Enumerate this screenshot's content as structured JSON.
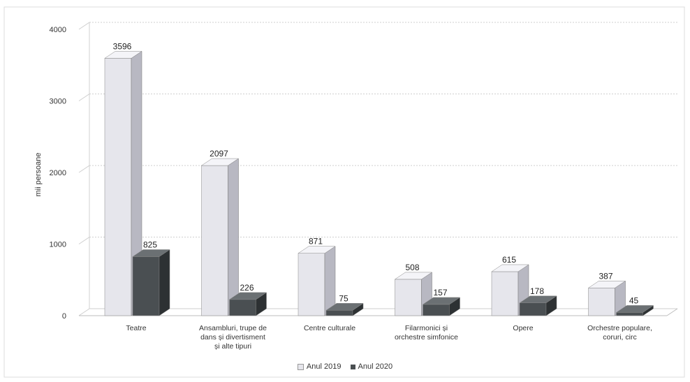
{
  "chart_data": {
    "type": "bar",
    "ylabel": "mii persoane",
    "ylim": [
      0,
      4000
    ],
    "yticks": [
      "0",
      "1000",
      "2000",
      "3000",
      "4000"
    ],
    "grid": true,
    "legend_position": "bottom",
    "categories": [
      [
        "Teatre"
      ],
      [
        "Ansambluri, trupe de",
        "dans și divertisment",
        "și alte tipuri"
      ],
      [
        "Centre culturale"
      ],
      [
        "Filarmonici și",
        "orchestre simfonice"
      ],
      [
        "Opere"
      ],
      [
        "Orchestre populare,",
        "coruri, circ"
      ]
    ],
    "series": [
      {
        "name": "Anul 2019",
        "values": [
          3596,
          2097,
          871,
          508,
          615,
          387
        ],
        "color": "#e6e6ec",
        "side": "#b8b8c2",
        "top": "#f4f4f8"
      },
      {
        "name": "Anul 2020",
        "values": [
          825,
          226,
          75,
          157,
          178,
          45
        ],
        "color": "#4a4f52",
        "side": "#2d3133",
        "top": "#6b7073"
      }
    ]
  }
}
